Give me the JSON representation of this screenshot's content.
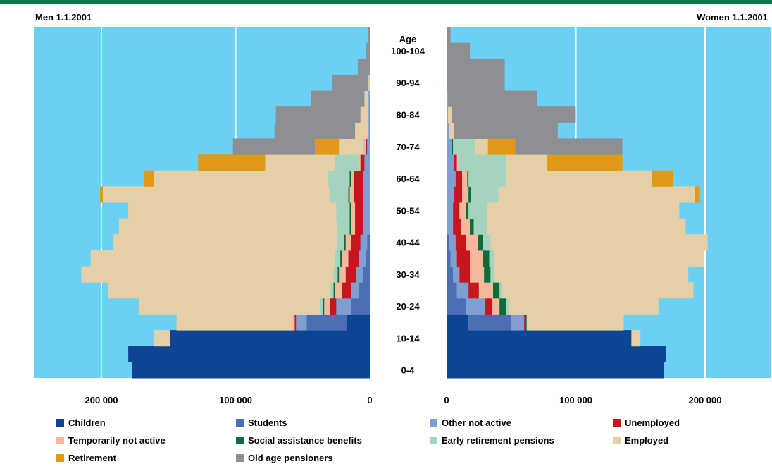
{
  "header": {
    "left_title": "Men 1.1.2001",
    "right_title": "Women 1.1.2001"
  },
  "chart_data": {
    "type": "bar",
    "orientation": "horizontal-population-pyramid",
    "age_axis_title": "Age",
    "age_groups": [
      "0-4",
      "5-9",
      "10-14",
      "15-19",
      "20-24",
      "25-29",
      "30-34",
      "35-39",
      "40-44",
      "45-49",
      "50-54",
      "55-59",
      "60-64",
      "65-69",
      "70-74",
      "75-79",
      "80-84",
      "85-89",
      "90-94",
      "95-99",
      "100-104",
      "105-109"
    ],
    "age_tick_labels": [
      "0-4",
      "10-14",
      "20-24",
      "30-34",
      "40-44",
      "50-54",
      "60-64",
      "70-74",
      "80-84",
      "90-94",
      "100-104"
    ],
    "x_ticks_men": [
      "200 000",
      "100 000",
      "0"
    ],
    "x_ticks_women": [
      "0",
      "100 000",
      "200 000"
    ],
    "xlim": [
      0,
      250000
    ],
    "gridlines": [
      100000,
      200000
    ],
    "categories": [
      {
        "key": "children",
        "name": "Children",
        "color": "#0d4594"
      },
      {
        "key": "students",
        "name": "Students",
        "color": "#4a6fb5"
      },
      {
        "key": "other",
        "name": "Other not active",
        "color": "#7f9fd3"
      },
      {
        "key": "unemployed",
        "name": "Unemployed",
        "color": "#c8161d"
      },
      {
        "key": "temp",
        "name": "Temporarily not active",
        "color": "#f6b89a"
      },
      {
        "key": "social",
        "name": "Social assistance benefits",
        "color": "#0e6b3a"
      },
      {
        "key": "early",
        "name": "Early retirement pensions",
        "color": "#a4d4bd"
      },
      {
        "key": "employed",
        "name": "Employed",
        "color": "#e5cfa7"
      },
      {
        "key": "retirement",
        "name": "Retirement",
        "color": "#e09a18"
      },
      {
        "key": "oldage",
        "name": "Old age pensioners",
        "color": "#8e8f93"
      }
    ],
    "legend_order": [
      "children",
      "students",
      "other",
      "unemployed",
      "temp",
      "social",
      "early",
      "employed",
      "retirement",
      "oldage"
    ],
    "series_order": [
      "children",
      "students",
      "other",
      "unemployed",
      "temp",
      "social",
      "early",
      "employed",
      "retirement",
      "oldage"
    ],
    "men": [
      {
        "age": "0-4",
        "children": 177000
      },
      {
        "age": "5-9",
        "children": 180000
      },
      {
        "age": "10-14",
        "children": 149000,
        "employed": 12000
      },
      {
        "age": "15-19",
        "children": 17000,
        "students": 30000,
        "other": 8000,
        "unemployed": 1000,
        "temp": 2000,
        "employed": 86000
      },
      {
        "age": "20-24",
        "children": 0,
        "students": 14000,
        "other": 11000,
        "unemployed": 5000,
        "temp": 4000,
        "social": 1000,
        "early": 2000,
        "employed": 135000
      },
      {
        "age": "25-29",
        "students": 8000,
        "other": 6000,
        "unemployed": 7000,
        "temp": 5000,
        "social": 1000,
        "early": 2000,
        "employed": 166000
      },
      {
        "age": "30-34",
        "students": 5000,
        "other": 5000,
        "unemployed": 8000,
        "temp": 5000,
        "social": 1000,
        "early": 3000,
        "employed": 188000
      },
      {
        "age": "35-39",
        "students": 3000,
        "other": 5000,
        "unemployed": 8000,
        "temp": 5000,
        "social": 1000,
        "early": 4000,
        "employed": 182000
      },
      {
        "age": "40-44",
        "students": 2000,
        "other": 5000,
        "unemployed": 7000,
        "temp": 4000,
        "social": 1000,
        "early": 5000,
        "employed": 167000
      },
      {
        "age": "45-49",
        "other": 5000,
        "unemployed": 6000,
        "temp": 3000,
        "social": 1000,
        "early": 9000,
        "employed": 163000
      },
      {
        "age": "50-54",
        "other": 5000,
        "unemployed": 6000,
        "temp": 3000,
        "social": 1000,
        "early": 10000,
        "employed": 155000
      },
      {
        "age": "55-59",
        "other": 5000,
        "unemployed": 7000,
        "temp": 3000,
        "social": 1000,
        "early": 14000,
        "employed": 169000,
        "retirement": 2000
      },
      {
        "age": "60-64",
        "other": 5000,
        "unemployed": 7000,
        "temp": 2000,
        "social": 1000,
        "early": 16000,
        "employed": 130000,
        "retirement": 7000
      },
      {
        "age": "65-69",
        "other": 4000,
        "unemployed": 3000,
        "temp": 1000,
        "early": 18000,
        "employed": 52000,
        "retirement": 50000
      },
      {
        "age": "70-74",
        "other": 2000,
        "unemployed": 1000,
        "early": 2000,
        "employed": 18000,
        "retirement": 18000,
        "oldage": 61000
      },
      {
        "age": "75-79",
        "other": 1000,
        "employed": 10000,
        "oldage": 60000
      },
      {
        "age": "80-84",
        "other": 1000,
        "employed": 6000,
        "oldage": 63000
      },
      {
        "age": "85-89",
        "other": 1000,
        "employed": 3000,
        "oldage": 40000
      },
      {
        "age": "90-94",
        "employed": 1000,
        "oldage": 27000
      },
      {
        "age": "95-99",
        "oldage": 9000
      },
      {
        "age": "100-104",
        "oldage": 3000
      },
      {
        "age": "105-109",
        "oldage": 1000
      }
    ],
    "women": [
      {
        "age": "0-4",
        "children": 168000
      },
      {
        "age": "5-9",
        "children": 170000
      },
      {
        "age": "10-14",
        "children": 143000,
        "employed": 7000
      },
      {
        "age": "15-19",
        "children": 17000,
        "students": 33000,
        "other": 10000,
        "unemployed": 1000,
        "social": 1000,
        "employed": 75000
      },
      {
        "age": "20-24",
        "students": 15000,
        "other": 15000,
        "unemployed": 5000,
        "temp": 6000,
        "social": 5000,
        "early": 2000,
        "employed": 116000
      },
      {
        "age": "25-29",
        "students": 8000,
        "other": 9000,
        "unemployed": 8000,
        "temp": 11000,
        "social": 5000,
        "early": 2000,
        "employed": 148000
      },
      {
        "age": "30-34",
        "students": 5000,
        "other": 5000,
        "unemployed": 8000,
        "temp": 11000,
        "social": 5000,
        "early": 3000,
        "employed": 150000
      },
      {
        "age": "35-39",
        "students": 3000,
        "other": 5000,
        "unemployed": 10000,
        "temp": 10000,
        "social": 5000,
        "early": 4000,
        "employed": 162000
      },
      {
        "age": "40-44",
        "students": 2000,
        "other": 5000,
        "unemployed": 8000,
        "temp": 9000,
        "social": 4000,
        "early": 6000,
        "employed": 168000
      },
      {
        "age": "45-49",
        "other": 5000,
        "unemployed": 6000,
        "temp": 7000,
        "social": 3000,
        "early": 10000,
        "employed": 154000
      },
      {
        "age": "50-54",
        "other": 5000,
        "unemployed": 5000,
        "temp": 5000,
        "social": 2000,
        "early": 14000,
        "employed": 149000
      },
      {
        "age": "55-59",
        "other": 6000,
        "unemployed": 6000,
        "temp": 5000,
        "social": 2000,
        "early": 21000,
        "employed": 152000,
        "retirement": 4000
      },
      {
        "age": "60-64",
        "other": 7000,
        "unemployed": 5000,
        "temp": 4000,
        "social": 1000,
        "early": 29000,
        "employed": 113000,
        "retirement": 16000
      },
      {
        "age": "65-69",
        "other": 6000,
        "unemployed": 2000,
        "temp": 1000,
        "early": 37000,
        "employed": 32000,
        "retirement": 58000
      },
      {
        "age": "70-74",
        "other": 4000,
        "social": 1000,
        "early": 17000,
        "employed": 10000,
        "retirement": 21000,
        "oldage": 83000
      },
      {
        "age": "75-79",
        "other": 2000,
        "employed": 4000,
        "oldage": 80000
      },
      {
        "age": "80-84",
        "other": 1000,
        "employed": 3000,
        "oldage": 96000
      },
      {
        "age": "85-89",
        "other": 1000,
        "oldage": 69000
      },
      {
        "age": "90-94",
        "oldage": 45000
      },
      {
        "age": "95-99",
        "oldage": 45000
      },
      {
        "age": "100-104",
        "oldage": 18000
      },
      {
        "age": "105-109",
        "oldage": 3000
      }
    ]
  }
}
